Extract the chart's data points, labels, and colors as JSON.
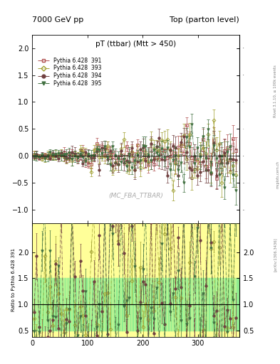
{
  "title_left": "7000 GeV pp",
  "title_right": "Top (parton level)",
  "plot_title": "pT (ttbar) (Mtt > 450)",
  "watermark": "(MC_FBA_TTBAR)",
  "right_label": "Rivet 3.1.10, ≥ 100k events",
  "arxiv_label": "[arXiv:1306.3436]",
  "mcplots_label": "mcplots.cern.ch",
  "ylabel_ratio": "Ratio to Pythia 6.428 391",
  "xlim": [
    0,
    375
  ],
  "ylim_main": [
    -1.25,
    2.25
  ],
  "ylim_ratio": [
    0.38,
    2.55
  ],
  "yticks_main": [
    -1.0,
    -0.5,
    0.0,
    0.5,
    1.0,
    1.5,
    2.0
  ],
  "yticks_ratio": [
    0.5,
    1.0,
    1.5,
    2.0
  ],
  "xticks": [
    0,
    100,
    200,
    300
  ],
  "series": [
    {
      "label": "Pythia 6.428  391",
      "color": "#b05050",
      "marker": "s",
      "marker_filled": false,
      "linestyle": "-."
    },
    {
      "label": "Pythia 6.428  393",
      "color": "#a0a030",
      "marker": "D",
      "marker_filled": false,
      "linestyle": "-."
    },
    {
      "label": "Pythia 6.428  394",
      "color": "#704040",
      "marker": "o",
      "marker_filled": true,
      "linestyle": "-."
    },
    {
      "label": "Pythia 6.428  395",
      "color": "#407040",
      "marker": "v",
      "marker_filled": true,
      "linestyle": "-."
    }
  ],
  "bg_color_main": "#ffffff",
  "bg_color_ratio_green": "#90ee90",
  "bg_color_ratio_yellow": "#ffff99"
}
